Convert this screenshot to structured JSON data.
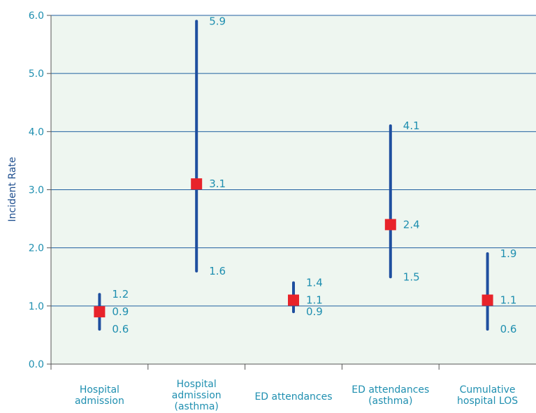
{
  "chart_data": {
    "type": "error_bar",
    "ylabel": "Incident Rate",
    "ylim": [
      0,
      6
    ],
    "yticks": [
      "0.0",
      "1.0",
      "2.0",
      "3.0",
      "4.0",
      "5.0",
      "6.0"
    ],
    "grid": true,
    "categories": [
      [
        "Hospital",
        "admission"
      ],
      [
        "Hospital",
        "admission",
        "(asthma)"
      ],
      [
        "ED attendances"
      ],
      [
        "ED attendances",
        "(asthma)"
      ],
      [
        "Cumulative",
        "hospital LOS"
      ]
    ],
    "points": [
      {
        "estimate": 0.9,
        "lower": 0.6,
        "upper": 1.2,
        "labels": {
          "estimate": "0.9",
          "lower": "0.6",
          "upper": "1.2"
        }
      },
      {
        "estimate": 3.1,
        "lower": 1.6,
        "upper": 5.9,
        "labels": {
          "estimate": "3.1",
          "lower": "1.6",
          "upper": "5.9"
        }
      },
      {
        "estimate": 1.1,
        "lower": 0.9,
        "upper": 1.4,
        "labels": {
          "estimate": "1.1",
          "lower": "0.9",
          "upper": "1.4"
        }
      },
      {
        "estimate": 2.4,
        "lower": 1.5,
        "upper": 4.1,
        "labels": {
          "estimate": "2.4",
          "lower": "1.5",
          "upper": "4.1"
        }
      },
      {
        "estimate": 1.1,
        "lower": 0.6,
        "upper": 1.9,
        "labels": {
          "estimate": "1.1",
          "lower": "0.6",
          "upper": "1.9"
        }
      }
    ],
    "colors": {
      "plot_bg": "#eef6f0",
      "grid": "#1f5fa0",
      "bar": "#1f4f9f",
      "marker": "#e8232a",
      "text": "#1f8fb0",
      "axis": "#555555"
    }
  }
}
